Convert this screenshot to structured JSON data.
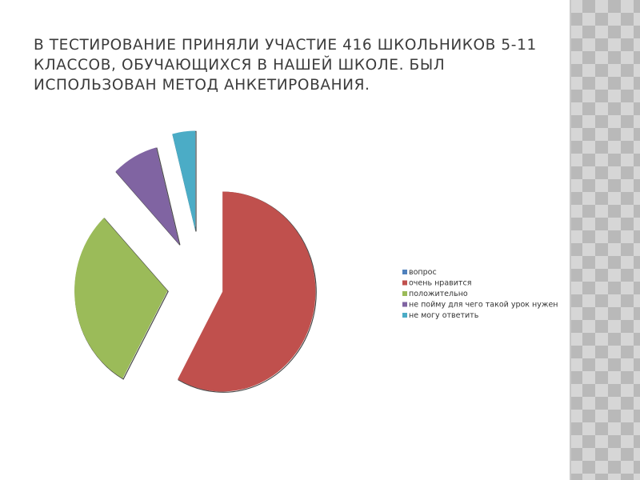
{
  "slide": {
    "title": "В ТЕСТИРОВАНИЕ  ПРИНЯЛИ УЧАСТИЕ 416  ШКОЛЬНИКОВ 5-11 КЛАССОВ, ОБУЧАЮЩИХСЯ В НАШЕЙ ШКОЛЕ. БЫЛ ИСПОЛЬЗОВАН МЕТОД АНКЕТИРОВАНИЯ."
  },
  "chart_data": {
    "type": "pie",
    "title": "",
    "series": [
      {
        "name": "вопрос",
        "value": 0,
        "color": "#4f81bd"
      },
      {
        "name": "очень нравится",
        "value": 58,
        "color": "#c0504d"
      },
      {
        "name": "положительно",
        "value": 30,
        "color": "#9bbb59"
      },
      {
        "name": "не пойму для чего такой урок нужен",
        "value": 8,
        "color": "#8064a2"
      },
      {
        "name": "не могу ответить",
        "value": 4,
        "color": "#4bacc6"
      }
    ],
    "exploded": true,
    "legend_position": "right"
  }
}
